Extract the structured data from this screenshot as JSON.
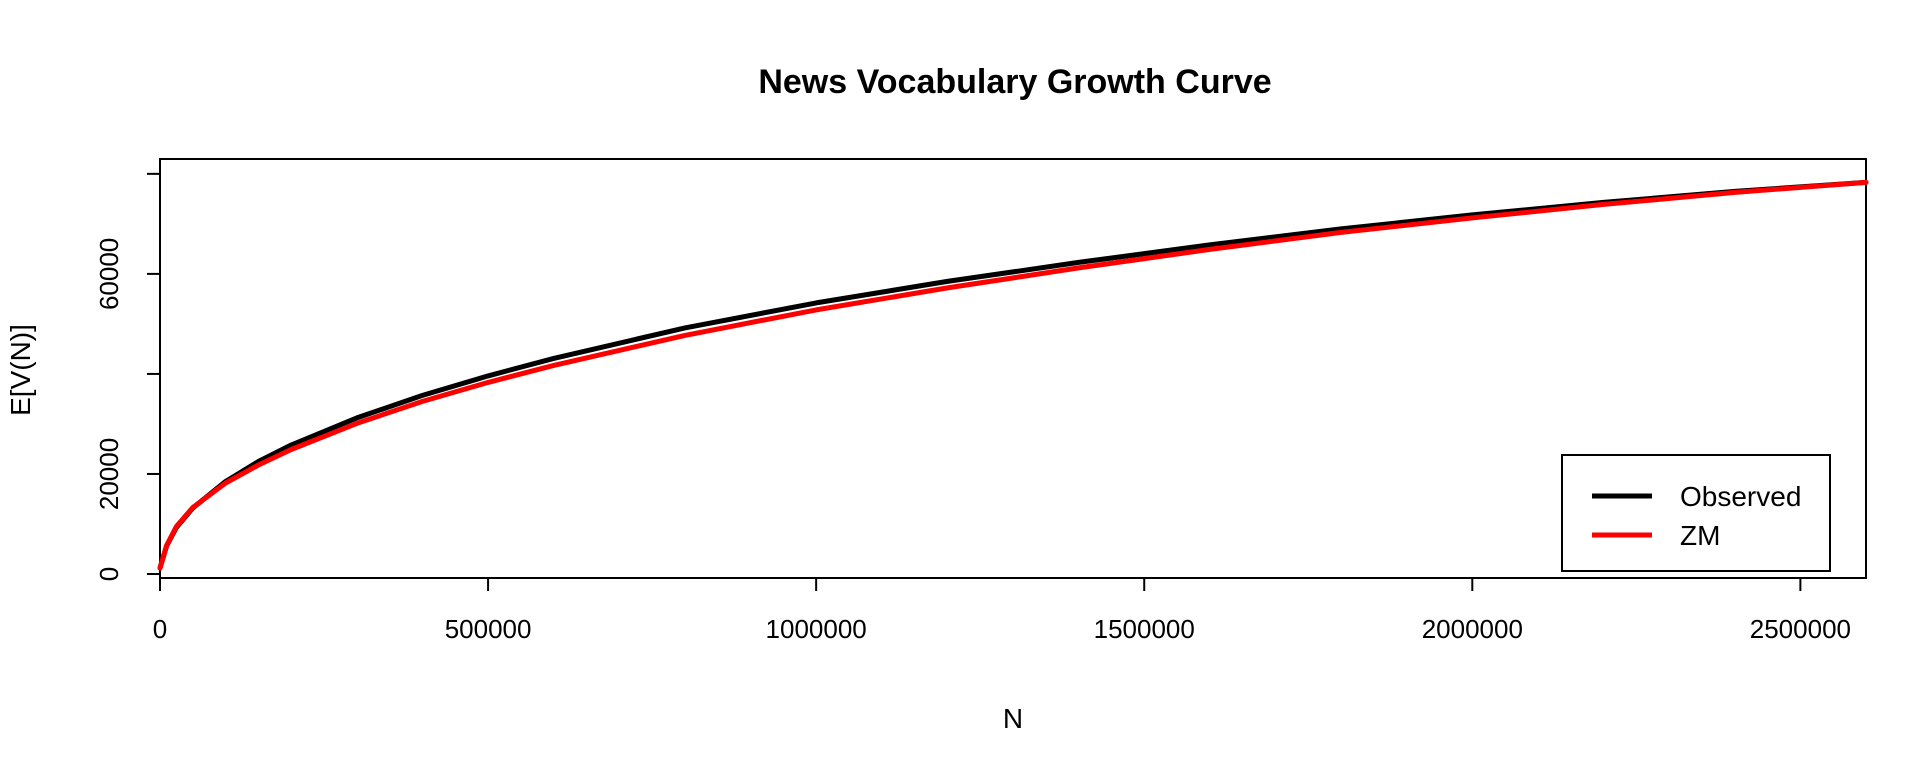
{
  "chart_data": {
    "type": "line",
    "title": "News Vocabulary Growth Curve",
    "xlabel": "N",
    "ylabel": "E[V(N)]",
    "xlim": [
      0,
      2600000
    ],
    "ylim": [
      0,
      80000
    ],
    "x_ticks": [
      0,
      500000,
      1000000,
      1500000,
      2000000,
      2500000
    ],
    "x_tick_labels": [
      "0",
      "500000",
      "1000000",
      "1500000",
      "2000000",
      "2500000"
    ],
    "y_ticks": [
      0,
      20000,
      40000,
      60000,
      80000
    ],
    "y_tick_labels": [
      "0",
      "20000",
      "",
      "60000",
      ""
    ],
    "grid": false,
    "legend_position": "bottom-right",
    "x": [
      0,
      10000,
      25000,
      50000,
      100000,
      150000,
      200000,
      300000,
      400000,
      500000,
      600000,
      800000,
      1000000,
      1200000,
      1400000,
      1600000,
      1800000,
      2000000,
      2200000,
      2400000,
      2600000
    ],
    "series": [
      {
        "name": "Observed",
        "color": "#000000",
        "values": [
          1200,
          5600,
          9300,
          13200,
          18500,
          22500,
          25800,
          31200,
          35700,
          39600,
          43100,
          49200,
          54200,
          58500,
          62300,
          65800,
          69000,
          71800,
          74300,
          76500,
          78300
        ]
      },
      {
        "name": "ZM",
        "color": "#ff0000",
        "values": [
          1200,
          5700,
          9500,
          13300,
          18200,
          21800,
          24900,
          30100,
          34500,
          38300,
          41700,
          47700,
          52800,
          57200,
          61200,
          64900,
          68300,
          71200,
          73900,
          76300,
          78300
        ]
      }
    ]
  }
}
